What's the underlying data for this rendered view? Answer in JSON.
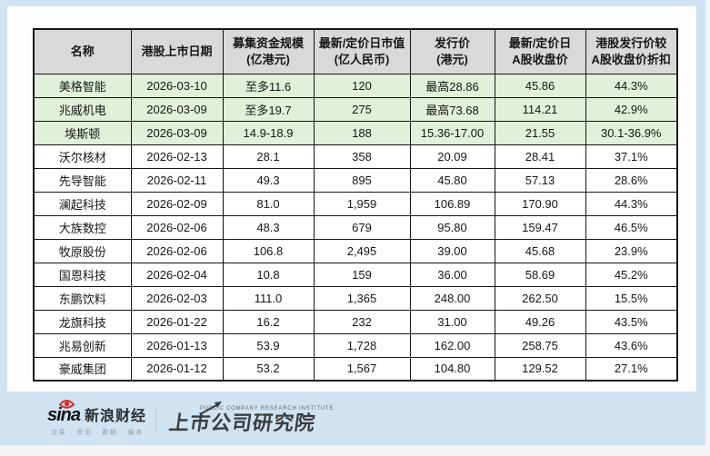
{
  "chart_data": {
    "type": "table",
    "columns": [
      "名称",
      "港股上市日期",
      "募集资金规模\n(亿港元)",
      "最新/定价日市值\n(亿人民币)",
      "发行价\n(港元)",
      "最新/定价日\nA股收盘价",
      "港股发行价较\nA股收盘价折扣"
    ],
    "rows": [
      [
        "美格智能",
        "2026-03-10",
        "至多11.6",
        "120",
        "最高28.86",
        "45.86",
        "44.3%"
      ],
      [
        "兆威机电",
        "2026-03-09",
        "至多19.7",
        "275",
        "最高73.68",
        "114.21",
        "42.9%"
      ],
      [
        "埃斯顿",
        "2026-03-09",
        "14.9-18.9",
        "188",
        "15.36-17.00",
        "21.55",
        "30.1-36.9%"
      ],
      [
        "沃尔核材",
        "2026-02-13",
        "28.1",
        "358",
        "20.09",
        "28.41",
        "37.1%"
      ],
      [
        "先导智能",
        "2026-02-11",
        "49.3",
        "895",
        "45.80",
        "57.13",
        "28.6%"
      ],
      [
        "澜起科技",
        "2026-02-09",
        "81.0",
        "1,959",
        "106.89",
        "170.90",
        "44.3%"
      ],
      [
        "大族数控",
        "2026-02-06",
        "48.3",
        "679",
        "95.80",
        "159.47",
        "46.5%"
      ],
      [
        "牧原股份",
        "2026-02-06",
        "106.8",
        "2,495",
        "39.00",
        "45.68",
        "23.9%"
      ],
      [
        "国恩科技",
        "2026-02-04",
        "10.8",
        "159",
        "36.00",
        "58.69",
        "45.2%"
      ],
      [
        "东鹏饮料",
        "2026-02-03",
        "111.0",
        "1,365",
        "248.00",
        "262.50",
        "15.5%"
      ],
      [
        "龙旗科技",
        "2026-01-22",
        "16.2",
        "232",
        "31.00",
        "49.26",
        "43.5%"
      ],
      [
        "兆易创新",
        "2026-01-13",
        "53.9",
        "1,728",
        "162.00",
        "258.75",
        "43.6%"
      ],
      [
        "豪威集团",
        "2026-01-12",
        "53.2",
        "1,567",
        "104.80",
        "129.52",
        "27.1%"
      ]
    ],
    "highlighted_row_count": 3,
    "layout_hints": {
      "header_bg": "#d9d9d9",
      "highlight_row_bg": "#e2efd9",
      "grid": true
    }
  },
  "footer": {
    "sina_word": "sina",
    "sina_brand": "新浪财经",
    "sina_tagline": "交易 · 资讯 · 数据 · 服务",
    "institute_subtitle": "PUBLIC COMPANY RESEARCH INSTITUTE",
    "institute_name": "上市公司研究院"
  },
  "colors": {
    "page_bg": "#cfe3f2",
    "card_bg": "#fdfdfe",
    "table_border": "#161616",
    "sina_red": "#d6281e"
  }
}
